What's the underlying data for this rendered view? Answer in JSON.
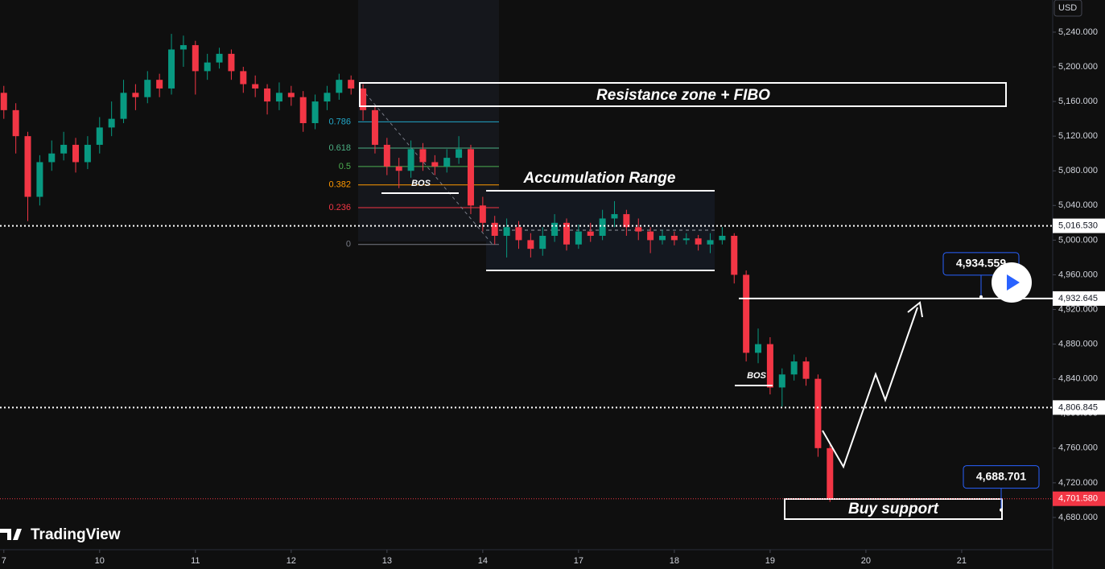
{
  "chart_data": {
    "type": "candlestick",
    "currency": "USD",
    "brand": "TradingView",
    "x": [
      0,
      0.125,
      0.25,
      0.375,
      0.5,
      0.625,
      0.75,
      0.875,
      1,
      1.125,
      1.25,
      1.375,
      1.5,
      1.625,
      1.75,
      1.875,
      2,
      2.125,
      2.25,
      2.375,
      2.5,
      2.625,
      2.75,
      2.875,
      3,
      3.125,
      3.25,
      3.375,
      3.5,
      3.625,
      3.75,
      3.875,
      4,
      4.125,
      4.25,
      4.375,
      4.5,
      4.625,
      4.75,
      4.875,
      5,
      5.125,
      5.25,
      5.375,
      5.5,
      5.625,
      5.75,
      5.875,
      6,
      6.125,
      6.25,
      6.375,
      6.5,
      6.625,
      6.75,
      6.875,
      7,
      7.125,
      7.25,
      7.375,
      7.5,
      7.625,
      7.75,
      7.875,
      8,
      8.125,
      8.25,
      8.375,
      8.5,
      8.625
    ],
    "open": [
      5170,
      5150,
      5120,
      5050,
      5090,
      5100,
      5110,
      5090,
      5110,
      5130,
      5140,
      5170,
      5165,
      5185,
      5175,
      5220,
      5225,
      5195,
      5205,
      5215,
      5195,
      5180,
      5175,
      5160,
      5170,
      5165,
      5135,
      5160,
      5170,
      5185,
      5175,
      5150,
      5110,
      5085,
      5080,
      5105,
      5090,
      5085,
      5095,
      5105,
      5040,
      5020,
      5005,
      5015,
      5000,
      4990,
      5005,
      5020,
      4995,
      5010,
      5005,
      5025,
      5030,
      5015,
      5010,
      5000,
      5005,
      5000,
      5002,
      4995,
      5000,
      5005,
      4960,
      4870,
      4880,
      4830,
      4845,
      4860,
      4840,
      4760
    ],
    "high": [
      5178,
      5158,
      5125,
      5098,
      5115,
      5125,
      5118,
      5120,
      5142,
      5160,
      5185,
      5180,
      5195,
      5192,
      5238,
      5236,
      5230,
      5215,
      5222,
      5220,
      5200,
      5190,
      5180,
      5182,
      5178,
      5172,
      5168,
      5178,
      5192,
      5190,
      5180,
      5155,
      5118,
      5095,
      5115,
      5112,
      5098,
      5105,
      5120,
      5110,
      5050,
      5028,
      5025,
      5022,
      5008,
      5015,
      5030,
      5025,
      5018,
      5020,
      5035,
      5045,
      5035,
      5025,
      5015,
      5012,
      5010,
      5008,
      5006,
      5008,
      5015,
      5008,
      4965,
      4898,
      4888,
      4852,
      4868,
      4865,
      4845,
      4765
    ],
    "low": [
      5140,
      5100,
      5022,
      5040,
      5080,
      5092,
      5078,
      5082,
      5100,
      5120,
      5135,
      5150,
      5158,
      5165,
      5168,
      5200,
      5168,
      5185,
      5198,
      5185,
      5170,
      5165,
      5145,
      5150,
      5155,
      5125,
      5128,
      5150,
      5162,
      5168,
      5138,
      5100,
      5075,
      5060,
      5072,
      5080,
      5075,
      5078,
      5088,
      5030,
      5010,
      4995,
      4980,
      4990,
      4980,
      4982,
      4998,
      4988,
      4990,
      4998,
      5000,
      5015,
      5005,
      5000,
      4985,
      4995,
      4994,
      4995,
      4988,
      4985,
      4995,
      4950,
      4860,
      4858,
      4822,
      4808,
      4838,
      4832,
      4750,
      4698
    ],
    "close": [
      5150,
      5120,
      5050,
      5090,
      5100,
      5110,
      5090,
      5110,
      5130,
      5140,
      5170,
      5165,
      5185,
      5175,
      5220,
      5225,
      5195,
      5205,
      5215,
      5195,
      5180,
      5175,
      5160,
      5170,
      5165,
      5135,
      5160,
      5170,
      5185,
      5175,
      5150,
      5110,
      5085,
      5080,
      5105,
      5090,
      5085,
      5095,
      5105,
      5040,
      5020,
      5005,
      5015,
      5000,
      4990,
      5005,
      5020,
      4995,
      5010,
      5005,
      5025,
      5030,
      5015,
      5010,
      5000,
      5005,
      5000,
      5002,
      4995,
      5000,
      5005,
      4960,
      4870,
      4880,
      4830,
      4845,
      4860,
      4840,
      4760,
      4702
    ],
    "up_color": "#089981",
    "down_color": "#f23645",
    "xlim": [
      -0.04,
      10.95
    ],
    "xticks": [
      {
        "value": 0,
        "label": "7"
      },
      {
        "value": 1,
        "label": "10"
      },
      {
        "value": 2,
        "label": "11"
      },
      {
        "value": 3,
        "label": "12"
      },
      {
        "value": 4,
        "label": "13"
      },
      {
        "value": 5,
        "label": "14"
      },
      {
        "value": 6,
        "label": "17"
      },
      {
        "value": 7,
        "label": "18"
      },
      {
        "value": 8,
        "label": "19"
      },
      {
        "value": 9,
        "label": "20"
      },
      {
        "value": 10,
        "label": "21"
      }
    ],
    "ylim": [
      4645.6,
      5277.1
    ],
    "yticks": [
      {
        "value": 5240,
        "label": "5,240.000"
      },
      {
        "value": 5200,
        "label": "5,200.000"
      },
      {
        "value": 5160,
        "label": "5,160.000"
      },
      {
        "value": 5120,
        "label": "5,120.000"
      },
      {
        "value": 5080,
        "label": "5,080.000"
      },
      {
        "value": 5040,
        "label": "5,040.000"
      },
      {
        "value": 5000,
        "label": "5,000.000"
      },
      {
        "value": 4960,
        "label": "4,960.000"
      },
      {
        "value": 4920,
        "label": "4,920.000"
      },
      {
        "value": 4880,
        "label": "4,880.000"
      },
      {
        "value": 4840,
        "label": "4,840.000"
      },
      {
        "value": 4800,
        "label": "4,800.000"
      },
      {
        "value": 4760,
        "label": "4,760.000"
      },
      {
        "value": 4720,
        "label": "4,720.000"
      },
      {
        "value": 4680,
        "label": "4,680.000"
      }
    ],
    "grid": false,
    "price_lines": [
      {
        "value": 5016.53,
        "label": "5,016.530",
        "color": "#ffffff"
      },
      {
        "value": 4932.645,
        "label": "4,932.645",
        "color": "#ffffff"
      },
      {
        "value": 4806.845,
        "label": "4,806.845",
        "color": "#ffffff"
      },
      {
        "value": 4701.58,
        "label": "4,701.580",
        "color": "#f23645"
      }
    ],
    "callouts": [
      {
        "value": 4934.559,
        "label": "4,934.559"
      },
      {
        "value": 4688.701,
        "label": "4,688.701"
      }
    ],
    "fib": {
      "low": 4995,
      "high": 5175,
      "levels": [
        0.786,
        0.618,
        0.5,
        0.382,
        0.236,
        0
      ],
      "colors": [
        "#22a6c7",
        "#4caf83",
        "#4caf50",
        "#ff9800",
        "#f23645",
        "#787b86"
      ]
    },
    "annotations": [
      "Resistance zone + FIBO",
      "Accumulation Range",
      "BOS",
      "BOS",
      "Buy support"
    ]
  }
}
